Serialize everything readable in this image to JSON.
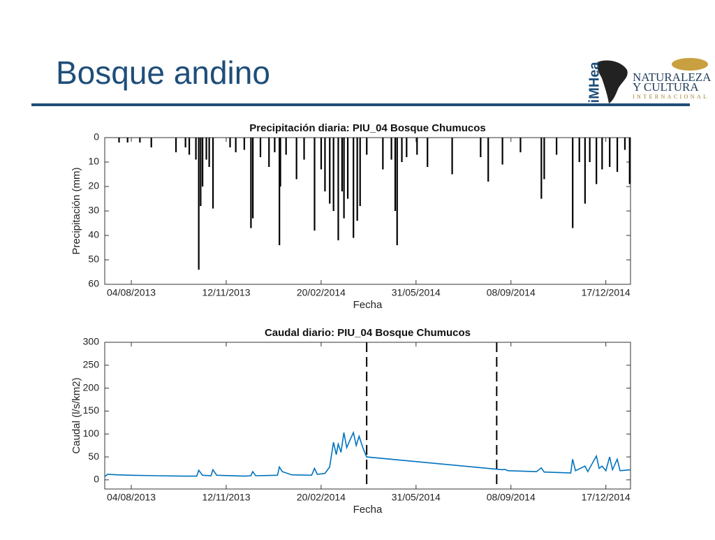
{
  "slide": {
    "title": "Bosque andino",
    "logos": [
      "iMHea",
      "NATURALEZA",
      "Y CULTURA",
      "INTERNACIONAL"
    ]
  },
  "chart_data": [
    {
      "type": "bar",
      "title": "Precipitación diaria: PIU_04 Bosque Chumucos",
      "xlabel": "Fecha",
      "ylabel": "Precipitación (mm)",
      "color": "#000000",
      "y_inverted": true,
      "xlim": [
        "2013-07-07",
        "2015-01-12"
      ],
      "xticks": [
        {
          "value": "2013-08-04",
          "label": "04/08/2013"
        },
        {
          "value": "2013-11-12",
          "label": "12/11/2013"
        },
        {
          "value": "2014-02-20",
          "label": "20/02/2014"
        },
        {
          "value": "2014-05-31",
          "label": "31/05/2014"
        },
        {
          "value": "2014-09-08",
          "label": "08/09/2014"
        },
        {
          "value": "2014-12-17",
          "label": "17/12/2014"
        }
      ],
      "ylim": [
        0,
        60
      ],
      "yticks": [
        0,
        10,
        20,
        30,
        40,
        50,
        60
      ],
      "x": [
        "2013-07-22",
        "2013-07-31",
        "2013-08-13",
        "2013-08-25",
        "2013-09-20",
        "2013-09-30",
        "2013-10-04",
        "2013-10-11",
        "2013-10-14",
        "2013-10-16",
        "2013-10-18",
        "2013-10-22",
        "2013-10-25",
        "2013-10-29",
        "2013-11-16",
        "2013-11-22",
        "2013-12-01",
        "2013-12-08",
        "2013-12-10",
        "2013-12-18",
        "2013-12-27",
        "2014-01-02",
        "2014-01-07",
        "2014-01-08",
        "2014-01-14",
        "2014-01-25",
        "2014-02-02",
        "2014-02-13",
        "2014-02-20",
        "2014-02-24",
        "2014-03-01",
        "2014-03-05",
        "2014-03-10",
        "2014-03-14",
        "2014-03-16",
        "2014-03-20",
        "2014-03-26",
        "2014-03-30",
        "2014-04-02",
        "2014-04-09",
        "2014-04-26",
        "2014-05-05",
        "2014-05-09",
        "2014-05-11",
        "2014-05-16",
        "2014-05-21",
        "2014-06-01",
        "2014-06-12",
        "2014-07-08",
        "2014-08-07",
        "2014-08-15",
        "2014-08-30",
        "2014-09-18",
        "2014-10-10",
        "2014-10-13",
        "2014-10-26",
        "2014-11-12",
        "2014-11-19",
        "2014-11-25",
        "2014-11-30",
        "2014-12-07",
        "2014-12-13",
        "2014-12-21",
        "2014-12-29",
        "2015-01-06",
        "2015-01-11"
      ],
      "values": [
        2,
        2,
        2,
        4,
        6,
        4,
        7,
        9,
        54,
        28,
        20,
        9,
        12,
        29,
        4,
        6,
        5,
        37,
        33,
        8,
        12,
        6,
        44,
        20,
        7,
        17,
        9,
        38,
        13,
        22,
        27,
        30,
        42,
        22,
        33,
        25,
        41,
        34,
        28,
        7,
        13,
        9,
        30,
        44,
        10,
        8,
        7,
        12,
        15,
        8,
        18,
        11,
        6,
        25,
        17,
        7,
        37,
        10,
        27,
        10,
        19,
        13,
        12,
        14,
        5,
        19
      ]
    },
    {
      "type": "line",
      "title": "Caudal diario: PIU_04 Bosque Chumucos",
      "xlabel": "Fecha",
      "ylabel": "Caudal (l/s/km2)",
      "color": "#0072bd",
      "xlim": [
        "2013-07-07",
        "2015-01-12"
      ],
      "xticks": [
        {
          "value": "2013-08-04",
          "label": "04/08/2013"
        },
        {
          "value": "2013-11-12",
          "label": "12/11/2013"
        },
        {
          "value": "2014-02-20",
          "label": "20/02/2014"
        },
        {
          "value": "2014-05-31",
          "label": "31/05/2014"
        },
        {
          "value": "2014-09-08",
          "label": "08/09/2014"
        },
        {
          "value": "2014-12-17",
          "label": "17/12/2014"
        }
      ],
      "ylim": [
        -20,
        300
      ],
      "yticks": [
        0,
        50,
        100,
        150,
        200,
        250,
        300
      ],
      "vlines": [
        "2014-04-09",
        "2014-08-24"
      ],
      "vline_color": "#000000",
      "x": [
        "2013-07-07",
        "2013-07-10",
        "2013-07-20",
        "2013-08-04",
        "2013-09-01",
        "2013-10-01",
        "2013-10-12",
        "2013-10-14",
        "2013-10-18",
        "2013-10-27",
        "2013-10-29",
        "2013-11-02",
        "2013-12-01",
        "2013-12-08",
        "2013-12-10",
        "2013-12-13",
        "2014-01-05",
        "2014-01-07",
        "2014-01-10",
        "2014-01-20",
        "2014-02-10",
        "2014-02-13",
        "2014-02-16",
        "2014-02-24",
        "2014-03-01",
        "2014-03-05",
        "2014-03-08",
        "2014-03-10",
        "2014-03-13",
        "2014-03-16",
        "2014-03-19",
        "2014-03-22",
        "2014-03-26",
        "2014-03-29",
        "2014-04-01",
        "2014-04-05",
        "2014-04-09",
        "2014-08-30",
        "2014-09-01",
        "2014-09-05",
        "2014-10-05",
        "2014-10-10",
        "2014-10-13",
        "2014-11-10",
        "2014-11-12",
        "2014-11-15",
        "2014-11-25",
        "2014-11-28",
        "2014-12-07",
        "2014-12-10",
        "2014-12-13",
        "2014-12-17",
        "2014-12-21",
        "2014-12-24",
        "2014-12-29",
        "2015-01-01",
        "2015-01-12"
      ],
      "values": [
        7,
        12,
        11,
        10,
        9,
        8,
        8,
        21,
        10,
        9,
        22,
        10,
        8,
        9,
        18,
        9,
        10,
        28,
        18,
        11,
        10,
        25,
        12,
        14,
        28,
        82,
        55,
        78,
        60,
        103,
        70,
        85,
        103,
        75,
        95,
        70,
        50,
        22,
        23,
        20,
        18,
        26,
        17,
        15,
        45,
        20,
        30,
        18,
        52,
        25,
        30,
        20,
        50,
        22,
        45,
        20,
        22
      ]
    }
  ]
}
